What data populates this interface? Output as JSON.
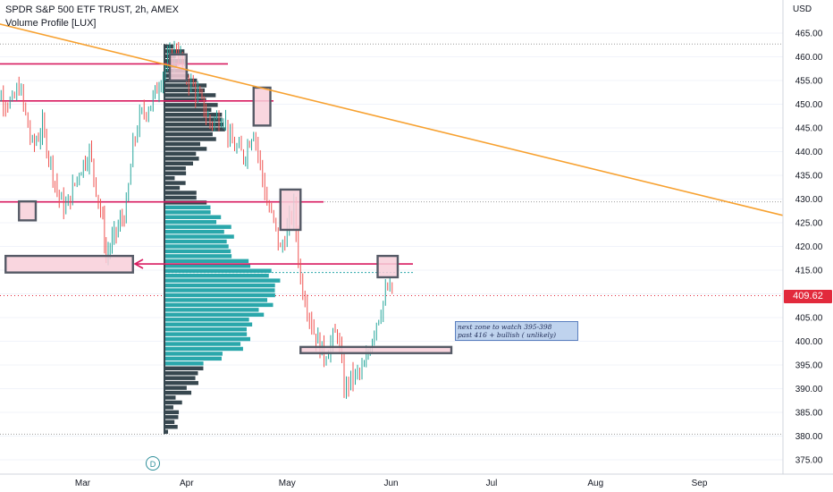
{
  "header": {
    "title": "SPDR S&P 500 ETF TRUST, 2h, AMEX",
    "indicator": "Volume Profile [LUX]"
  },
  "price_axis": {
    "currency": "USD",
    "labels": [
      "465.00",
      "460.00",
      "455.00",
      "450.00",
      "445.00",
      "440.00",
      "435.00",
      "430.00",
      "425.00",
      "420.00",
      "415.00",
      "410.00",
      "405.00",
      "400.00",
      "395.00",
      "390.00",
      "385.00",
      "380.00",
      "375.00"
    ],
    "current_price": "409.62"
  },
  "time_axis": {
    "labels": [
      "Mar",
      "Apr",
      "May",
      "Jun",
      "Jul",
      "Aug",
      "Sep"
    ]
  },
  "annotation": {
    "line1": "next zone to watch 395-398",
    "line2": "past 416 + bullish ( unlikely)"
  },
  "dividend_marker": "D",
  "colors": {
    "up": "#26a69a",
    "down": "#ef5350",
    "trendline": "#f7a130",
    "levels": "#d81b60",
    "profile_dark": "#37474f",
    "profile_poc": "#2aa7ab",
    "zone_fill": "#f8cfd9",
    "current_price": "#e22a3c"
  },
  "chart_data": {
    "type": "candlestick",
    "symbol": "SPY",
    "timeframe": "2h",
    "ylim": [
      373,
      468
    ],
    "x": [
      "Feb 1",
      "Feb 4",
      "Feb 8",
      "Feb 10",
      "Feb 14",
      "Feb 17",
      "Feb 22",
      "Feb 24",
      "Feb 28",
      "Mar 3",
      "Mar 7",
      "Mar 8",
      "Mar 11",
      "Mar 14",
      "Mar 16",
      "Mar 18",
      "Mar 22",
      "Mar 25",
      "Mar 29",
      "Apr 1",
      "Apr 5",
      "Apr 8",
      "Apr 12",
      "Apr 14",
      "Apr 18",
      "Apr 21",
      "Apr 25",
      "Apr 27",
      "Apr 29",
      "May 3",
      "May 5",
      "May 9",
      "May 12",
      "May 16",
      "May 18",
      "May 20",
      "May 24",
      "May 27",
      "May 31",
      "Jun 2"
    ],
    "close": [
      458,
      452,
      450,
      454,
      441,
      445,
      430,
      428,
      436,
      440,
      425,
      418,
      423,
      428,
      441,
      447,
      451,
      457,
      462,
      456,
      451,
      446,
      448,
      442,
      439,
      445,
      429,
      425,
      419,
      428,
      413,
      402,
      397,
      402,
      390,
      392,
      394,
      403,
      411,
      410
    ],
    "series": [
      {
        "name": "Trendline",
        "values": [
          [
            -24,
            468
          ],
          [
            877,
            426.5
          ]
        ]
      },
      {
        "name": "Level 1",
        "value": 458.5
      },
      {
        "name": "Level 2",
        "value": 450.7
      },
      {
        "name": "Level 3",
        "value": 429.4
      },
      {
        "name": "Level 4",
        "value": 416.3
      }
    ],
    "zones": [
      {
        "x": [
          "Jan 28",
          "Feb 4"
        ],
        "y": [
          455,
          460
        ]
      },
      {
        "x": [
          "Feb 10",
          "Feb 15"
        ],
        "y": [
          425.5,
          429.5
        ]
      },
      {
        "x": [
          "Feb 6",
          "Mar 16"
        ],
        "y": [
          414.5,
          418
        ]
      },
      {
        "x": [
          "Mar 27",
          "Apr 1"
        ],
        "y": [
          455,
          460.5
        ]
      },
      {
        "x": [
          "Apr 21",
          "Apr 26"
        ],
        "y": [
          445.5,
          453.5
        ]
      },
      {
        "x": [
          "Apr 29",
          "May 5"
        ],
        "y": [
          423.5,
          432
        ]
      },
      {
        "x": [
          "May 28",
          "Jun 3"
        ],
        "y": [
          413.5,
          418
        ]
      },
      {
        "x": [
          "May 5",
          "Jun 19"
        ],
        "y": [
          397.5,
          398.8
        ]
      }
    ],
    "volume_profile": {
      "price_range": [
        380.4,
        462.7
      ],
      "levels": 80,
      "point_of_control": 411.5
    },
    "current_price": 409.62,
    "xlabel": "",
    "ylabel": ""
  }
}
